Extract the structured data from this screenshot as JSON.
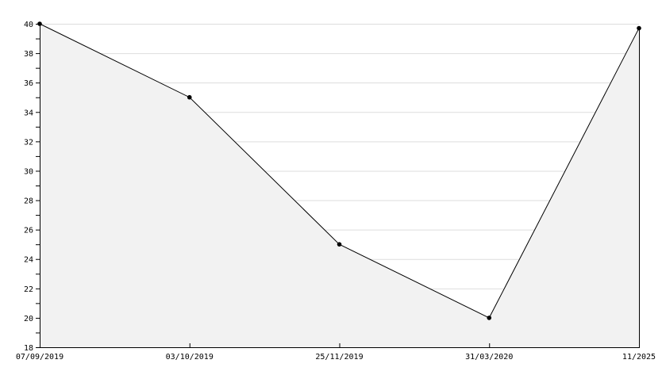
{
  "chart_data": {
    "type": "area",
    "title": "",
    "xlabel": "",
    "ylabel": "",
    "categories": [
      "07/09/2019",
      "03/10/2019",
      "25/11/2019",
      "31/03/2020",
      "11/2025"
    ],
    "series": [
      {
        "values": [
          40,
          35,
          25,
          20,
          39.7
        ]
      }
    ],
    "ylim": [
      18,
      40
    ],
    "yticks": [
      18,
      20,
      22,
      24,
      26,
      28,
      30,
      32,
      34,
      36,
      38,
      40
    ],
    "grid": true,
    "colors": {
      "fill": "#f2f2f2",
      "line": "#000000",
      "grid": "#dddddd",
      "marker": "#000000"
    }
  }
}
